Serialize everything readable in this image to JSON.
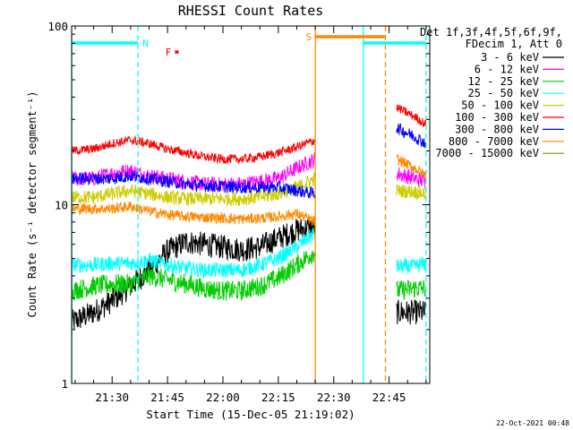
{
  "chart_data": {
    "type": "line",
    "title": "RHESSI Count Rates",
    "xlabel": "Start Time (15-Dec-05 21:19:02)",
    "ylabel": "Count Rate (s⁻¹ detector segment⁻¹)",
    "x_scale": "time (minutes of hour 21-22 UT)",
    "y_scale": "log",
    "ylim": [
      1,
      100
    ],
    "xlim": [
      "21:19:02",
      "22:56:00"
    ],
    "x_ticks": [
      "21:30",
      "21:45",
      "22:00",
      "22:15",
      "22:30",
      "22:45"
    ],
    "y_ticks": [
      "1",
      "10",
      "100"
    ],
    "legend_header": [
      "Det 1f,3f,4f,5f,6f,9f,",
      "FDecim 1, Att 0"
    ],
    "legend_position": "right",
    "timestamp": "22-Oct-2021 00:48",
    "data_gap": [
      "22:25",
      "22:46"
    ],
    "series": [
      {
        "name": "3 - 6 keV",
        "color": "#000000",
        "points": [
          [
            "21:19",
            2.2
          ],
          [
            "21:25",
            2.5
          ],
          [
            "21:30",
            2.9
          ],
          [
            "21:35",
            3.5
          ],
          [
            "21:40",
            4.3
          ],
          [
            "21:45",
            5.5
          ],
          [
            "21:50",
            6.2
          ],
          [
            "21:55",
            6.0
          ],
          [
            "22:00",
            5.8
          ],
          [
            "22:05",
            5.6
          ],
          [
            "22:10",
            5.8
          ],
          [
            "22:15",
            6.5
          ],
          [
            "22:20",
            7.2
          ],
          [
            "22:25",
            7.5
          ],
          [
            "22:47",
            2.5
          ],
          [
            "22:52",
            2.5
          ],
          [
            "22:55",
            2.5
          ]
        ]
      },
      {
        "name": "6 - 12 keV",
        "color": "#ff00ff",
        "points": [
          [
            "21:19",
            14
          ],
          [
            "21:25",
            14
          ],
          [
            "21:30",
            15
          ],
          [
            "21:35",
            15.5
          ],
          [
            "21:40",
            14.5
          ],
          [
            "21:45",
            14
          ],
          [
            "21:50",
            13.5
          ],
          [
            "21:55",
            13
          ],
          [
            "22:00",
            13
          ],
          [
            "22:05",
            13
          ],
          [
            "22:10",
            13.5
          ],
          [
            "22:15",
            14
          ],
          [
            "22:20",
            16
          ],
          [
            "22:25",
            18
          ],
          [
            "22:47",
            15
          ],
          [
            "22:52",
            14
          ],
          [
            "22:55",
            13.5
          ]
        ]
      },
      {
        "name": "12 - 25 keV",
        "color": "#00cc00",
        "points": [
          [
            "21:19",
            3.3
          ],
          [
            "21:25",
            3.5
          ],
          [
            "21:30",
            3.6
          ],
          [
            "21:35",
            3.6
          ],
          [
            "21:40",
            4.0
          ],
          [
            "21:45",
            3.8
          ],
          [
            "21:50",
            3.6
          ],
          [
            "21:55",
            3.4
          ],
          [
            "22:00",
            3.3
          ],
          [
            "22:05",
            3.3
          ],
          [
            "22:10",
            3.5
          ],
          [
            "22:15",
            3.9
          ],
          [
            "22:20",
            4.6
          ],
          [
            "22:25",
            5.5
          ],
          [
            "22:47",
            3.3
          ],
          [
            "22:52",
            3.4
          ],
          [
            "22:55",
            3.4
          ]
        ]
      },
      {
        "name": "25 - 50 keV",
        "color": "#00ffff",
        "points": [
          [
            "21:19",
            4.6
          ],
          [
            "21:25",
            4.6
          ],
          [
            "21:30",
            4.7
          ],
          [
            "21:35",
            4.7
          ],
          [
            "21:40",
            4.9
          ],
          [
            "21:45",
            4.6
          ],
          [
            "21:50",
            4.4
          ],
          [
            "21:55",
            4.3
          ],
          [
            "22:00",
            4.3
          ],
          [
            "22:05",
            4.3
          ],
          [
            "22:10",
            4.6
          ],
          [
            "22:15",
            5.0
          ],
          [
            "22:20",
            5.8
          ],
          [
            "22:25",
            7.0
          ],
          [
            "22:47",
            4.5
          ],
          [
            "22:52",
            4.5
          ],
          [
            "22:55",
            4.7
          ]
        ]
      },
      {
        "name": "50 - 100 keV",
        "color": "#cccc00",
        "points": [
          [
            "21:19",
            11
          ],
          [
            "21:25",
            11
          ],
          [
            "21:30",
            11.5
          ],
          [
            "21:35",
            12
          ],
          [
            "21:40",
            11.5
          ],
          [
            "21:45",
            11
          ],
          [
            "21:50",
            10.8
          ],
          [
            "21:55",
            10.8
          ],
          [
            "22:00",
            10.8
          ],
          [
            "22:05",
            10.8
          ],
          [
            "22:10",
            11
          ],
          [
            "22:15",
            11.5
          ],
          [
            "22:20",
            12.5
          ],
          [
            "22:25",
            14
          ],
          [
            "22:47",
            12
          ],
          [
            "22:52",
            11.8
          ],
          [
            "22:55",
            11.5
          ]
        ]
      },
      {
        "name": "100 - 300 keV",
        "color": "#ff0000",
        "points": [
          [
            "21:19",
            20
          ],
          [
            "21:25",
            20.5
          ],
          [
            "21:30",
            22
          ],
          [
            "21:35",
            23
          ],
          [
            "21:40",
            22
          ],
          [
            "21:45",
            20.5
          ],
          [
            "21:50",
            19.5
          ],
          [
            "21:55",
            18.5
          ],
          [
            "22:00",
            18
          ],
          [
            "22:05",
            18
          ],
          [
            "22:10",
            18.5
          ],
          [
            "22:15",
            19.5
          ],
          [
            "22:20",
            21
          ],
          [
            "22:25",
            23
          ],
          [
            "22:47",
            35
          ],
          [
            "22:52",
            31
          ],
          [
            "22:55",
            28
          ]
        ]
      },
      {
        "name": "300 - 800 keV",
        "color": "#0000ff",
        "points": [
          [
            "21:19",
            14
          ],
          [
            "21:25",
            14
          ],
          [
            "21:30",
            14
          ],
          [
            "21:35",
            14.5
          ],
          [
            "21:40",
            14
          ],
          [
            "21:45",
            13.5
          ],
          [
            "21:50",
            13
          ],
          [
            "21:55",
            12.8
          ],
          [
            "22:00",
            12.6
          ],
          [
            "22:05",
            12.5
          ],
          [
            "22:10",
            12.5
          ],
          [
            "22:15",
            12.5
          ],
          [
            "22:20",
            12
          ],
          [
            "22:25",
            11.5
          ],
          [
            "22:47",
            27
          ],
          [
            "22:52",
            24
          ],
          [
            "22:55",
            22
          ]
        ]
      },
      {
        "name": "800 - 7000 keV",
        "color": "#ff8800",
        "points": [
          [
            "21:19",
            9.5
          ],
          [
            "21:25",
            9.5
          ],
          [
            "21:30",
            9.5
          ],
          [
            "21:35",
            9.8
          ],
          [
            "21:40",
            9.2
          ],
          [
            "21:45",
            8.8
          ],
          [
            "21:50",
            8.6
          ],
          [
            "21:55",
            8.5
          ],
          [
            "22:00",
            8.4
          ],
          [
            "22:05",
            8.3
          ],
          [
            "22:10",
            8.4
          ],
          [
            "22:15",
            8.6
          ],
          [
            "22:20",
            8.9
          ],
          [
            "22:25",
            8.0
          ],
          [
            "22:47",
            18
          ],
          [
            "22:52",
            16
          ],
          [
            "22:55",
            14.5
          ]
        ]
      },
      {
        "name": "7000 - 15000 keV",
        "color": "#888800",
        "points": []
      }
    ],
    "attenuator_bars": [
      {
        "label": "N",
        "color": "#00ffff",
        "start": "21:19",
        "end": "21:37"
      },
      {
        "label": "N",
        "color": "#00ffff",
        "start": "22:38",
        "end": "22:55"
      },
      {
        "label": "S",
        "color": "#ff8800",
        "start": "22:25",
        "end": "22:44"
      },
      {
        "label": "F",
        "color": "#ff0000",
        "start": "21:47",
        "end": "21:48"
      }
    ],
    "vertical_lines": [
      {
        "color": "#00ffff",
        "style": "solid",
        "at": "21:19"
      },
      {
        "color": "#00ffff",
        "style": "dashed",
        "at": "21:37"
      },
      {
        "color": "#ff8800",
        "style": "solid",
        "at": "22:25"
      },
      {
        "color": "#00ffff",
        "style": "solid",
        "at": "22:38"
      },
      {
        "color": "#ff8800",
        "style": "dashed",
        "at": "22:44"
      },
      {
        "color": "#00ffff",
        "style": "dashed",
        "at": "22:55"
      }
    ]
  }
}
